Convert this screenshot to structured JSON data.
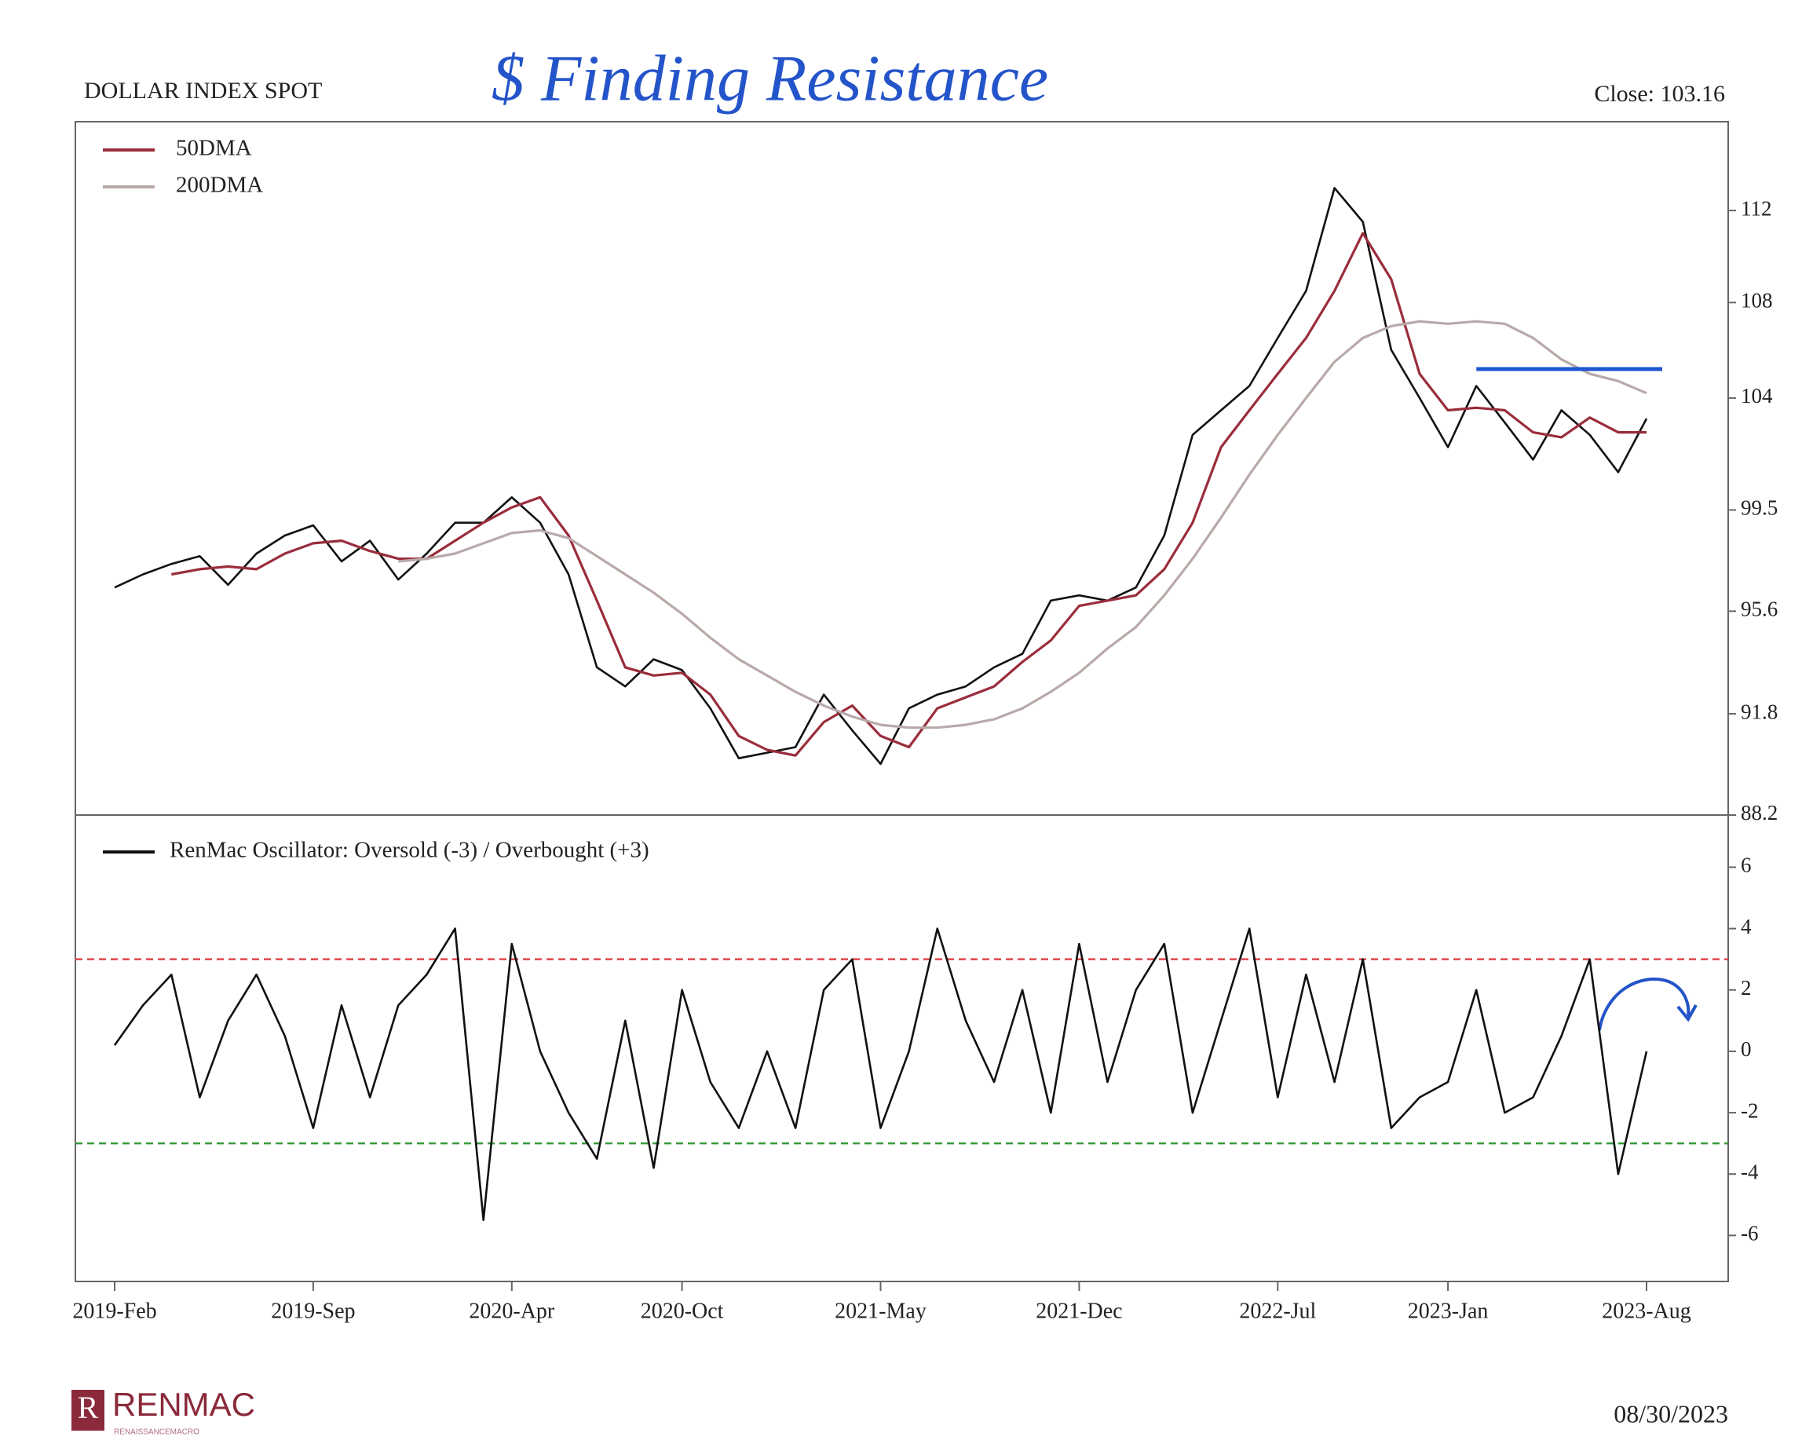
{
  "header": {
    "title": "DOLLAR INDEX SPOT",
    "annotation": "$ Finding Resistance",
    "close": "Close: 103.16"
  },
  "footer": {
    "brand": "RENMAC",
    "brand_sub": "RENAISSANCEMACRO",
    "date": "08/30/2023"
  },
  "chart_data": [
    {
      "type": "line",
      "log_scale": true,
      "legend": "upper left",
      "x": [
        "2019-Feb",
        "2019-Mar",
        "2019-Apr",
        "2019-May",
        "2019-Jun",
        "2019-Jul",
        "2019-Aug",
        "2019-Sep",
        "2019-Oct",
        "2019-Nov",
        "2019-Dec",
        "2020-Jan",
        "2020-Feb",
        "2020-Mar",
        "2020-Apr",
        "2020-May",
        "2020-Jun",
        "2020-Jul",
        "2020-Aug",
        "2020-Sep",
        "2020-Oct",
        "2020-Nov",
        "2020-Dec",
        "2021-Jan",
        "2021-Feb",
        "2021-Mar",
        "2021-Apr",
        "2021-May",
        "2021-Jun",
        "2021-Jul",
        "2021-Aug",
        "2021-Sep",
        "2021-Oct",
        "2021-Nov",
        "2021-Dec",
        "2022-Jan",
        "2022-Feb",
        "2022-Mar",
        "2022-Apr",
        "2022-May",
        "2022-Jun",
        "2022-Jul",
        "2022-Aug",
        "2022-Sep",
        "2022-Oct",
        "2022-Nov",
        "2022-Dec",
        "2023-Jan",
        "2023-Feb",
        "2023-Mar",
        "2023-Apr",
        "2023-May",
        "2023-Jun",
        "2023-Jul",
        "2023-Aug"
      ],
      "series": [
        {
          "color": "#111111",
          "values": [
            96.5,
            97,
            97.4,
            97.7,
            96.6,
            97.8,
            98.5,
            98.9,
            97.5,
            98.3,
            96.8,
            97.8,
            99,
            99,
            100,
            99,
            97,
            93.5,
            92.8,
            93.8,
            93.4,
            92,
            90.2,
            90.4,
            90.6,
            92.5,
            91.2,
            90,
            92,
            92.5,
            92.8,
            93.5,
            94,
            96,
            96.2,
            96,
            96.5,
            98.5,
            102.5,
            103.5,
            104.5,
            106.5,
            108.5,
            113,
            111.5,
            106,
            104,
            102,
            104.5,
            103,
            101.5,
            103.5,
            102.5,
            101,
            103.16
          ]
        },
        {
          "name": "50DMA",
          "color": "#9a2d3c",
          "values": [
            null,
            null,
            97,
            97.2,
            97.3,
            97.2,
            97.8,
            98.2,
            98.3,
            97.9,
            97.6,
            97.6,
            98.3,
            99,
            99.6,
            100,
            98.5,
            96,
            93.5,
            93.2,
            93.3,
            92.5,
            91,
            90.5,
            90.3,
            91.5,
            92.1,
            91,
            90.6,
            92,
            92.4,
            92.8,
            93.7,
            94.5,
            95.8,
            96,
            96.2,
            97.2,
            99,
            102,
            103.5,
            105,
            106.5,
            108.5,
            111,
            109,
            105,
            103.5,
            103.6,
            103.5,
            102.6,
            102.4,
            103.2,
            102.6,
            102.6
          ]
        },
        {
          "name": "200DMA",
          "color": "#b9a9a9",
          "values": [
            null,
            null,
            null,
            null,
            null,
            null,
            null,
            null,
            null,
            null,
            97.5,
            97.6,
            97.8,
            98.2,
            98.6,
            98.7,
            98.4,
            97.7,
            97,
            96.3,
            95.5,
            94.6,
            93.8,
            93.2,
            92.6,
            92.1,
            91.7,
            91.4,
            91.3,
            91.3,
            91.4,
            91.6,
            92,
            92.6,
            93.3,
            94.2,
            95,
            96.2,
            97.6,
            99.2,
            100.9,
            102.5,
            104,
            105.5,
            106.5,
            107,
            107.2,
            107.1,
            107.2,
            107.1,
            106.5,
            105.6,
            105,
            104.7,
            104.2
          ]
        }
      ],
      "ylim": [
        88.2,
        116
      ],
      "yticks": [
        88.2,
        91.8,
        95.6,
        99.5,
        104,
        108,
        112
      ],
      "resistance": {
        "value": 105.2,
        "from": "2023-Feb",
        "to": "2023-Aug",
        "color": "#1f55d0"
      }
    },
    {
      "type": "line",
      "legend": "upper left",
      "x": [
        "2019-Feb",
        "2019-Mar",
        "2019-Apr",
        "2019-May",
        "2019-Jun",
        "2019-Jul",
        "2019-Aug",
        "2019-Sep",
        "2019-Oct",
        "2019-Nov",
        "2019-Dec",
        "2020-Jan",
        "2020-Feb",
        "2020-Mar",
        "2020-Apr",
        "2020-May",
        "2020-Jun",
        "2020-Jul",
        "2020-Aug",
        "2020-Sep",
        "2020-Oct",
        "2020-Nov",
        "2020-Dec",
        "2021-Jan",
        "2021-Feb",
        "2021-Mar",
        "2021-Apr",
        "2021-May",
        "2021-Jun",
        "2021-Jul",
        "2021-Aug",
        "2021-Sep",
        "2021-Oct",
        "2021-Nov",
        "2021-Dec",
        "2022-Jan",
        "2022-Feb",
        "2022-Mar",
        "2022-Apr",
        "2022-May",
        "2022-Jun",
        "2022-Jul",
        "2022-Aug",
        "2022-Sep",
        "2022-Oct",
        "2022-Nov",
        "2022-Dec",
        "2023-Jan",
        "2023-Feb",
        "2023-Mar",
        "2023-Apr",
        "2023-May",
        "2023-Jun",
        "2023-Jul",
        "2023-Aug"
      ],
      "series": [
        {
          "name": "RenMac Oscillator: Oversold (-3) / Overbought (+3)",
          "color": "#111111",
          "values": [
            0.2,
            1.5,
            2.5,
            -1.5,
            1,
            2.5,
            0.5,
            -2.5,
            1.5,
            -1.5,
            1.5,
            2.5,
            4,
            -5.5,
            3.5,
            0,
            -2,
            -3.5,
            1,
            -3.8,
            2,
            -1,
            -2.5,
            0,
            -2.5,
            2,
            3,
            -2.5,
            0,
            4,
            1,
            -1,
            2,
            -2,
            3.5,
            -1,
            2,
            3.5,
            -2,
            1,
            4,
            -1.5,
            2.5,
            -1,
            3,
            -2.5,
            -1.5,
            -1,
            2,
            -2,
            -1.5,
            0.5,
            3,
            -4,
            0
          ]
        }
      ],
      "ylim": [
        -7.5,
        7.7
      ],
      "yticks": [
        -6,
        -4,
        -2,
        0,
        2,
        4,
        6
      ],
      "xticks": [
        "2019-Feb",
        "2019-Sep",
        "2020-Apr",
        "2020-Oct",
        "2021-May",
        "2021-Dec",
        "2022-Jul",
        "2023-Jan",
        "2023-Aug"
      ],
      "hlines": [
        {
          "value": 3,
          "color": "#e0474c"
        },
        {
          "value": -3,
          "color": "#3a9a3a"
        }
      ]
    }
  ]
}
